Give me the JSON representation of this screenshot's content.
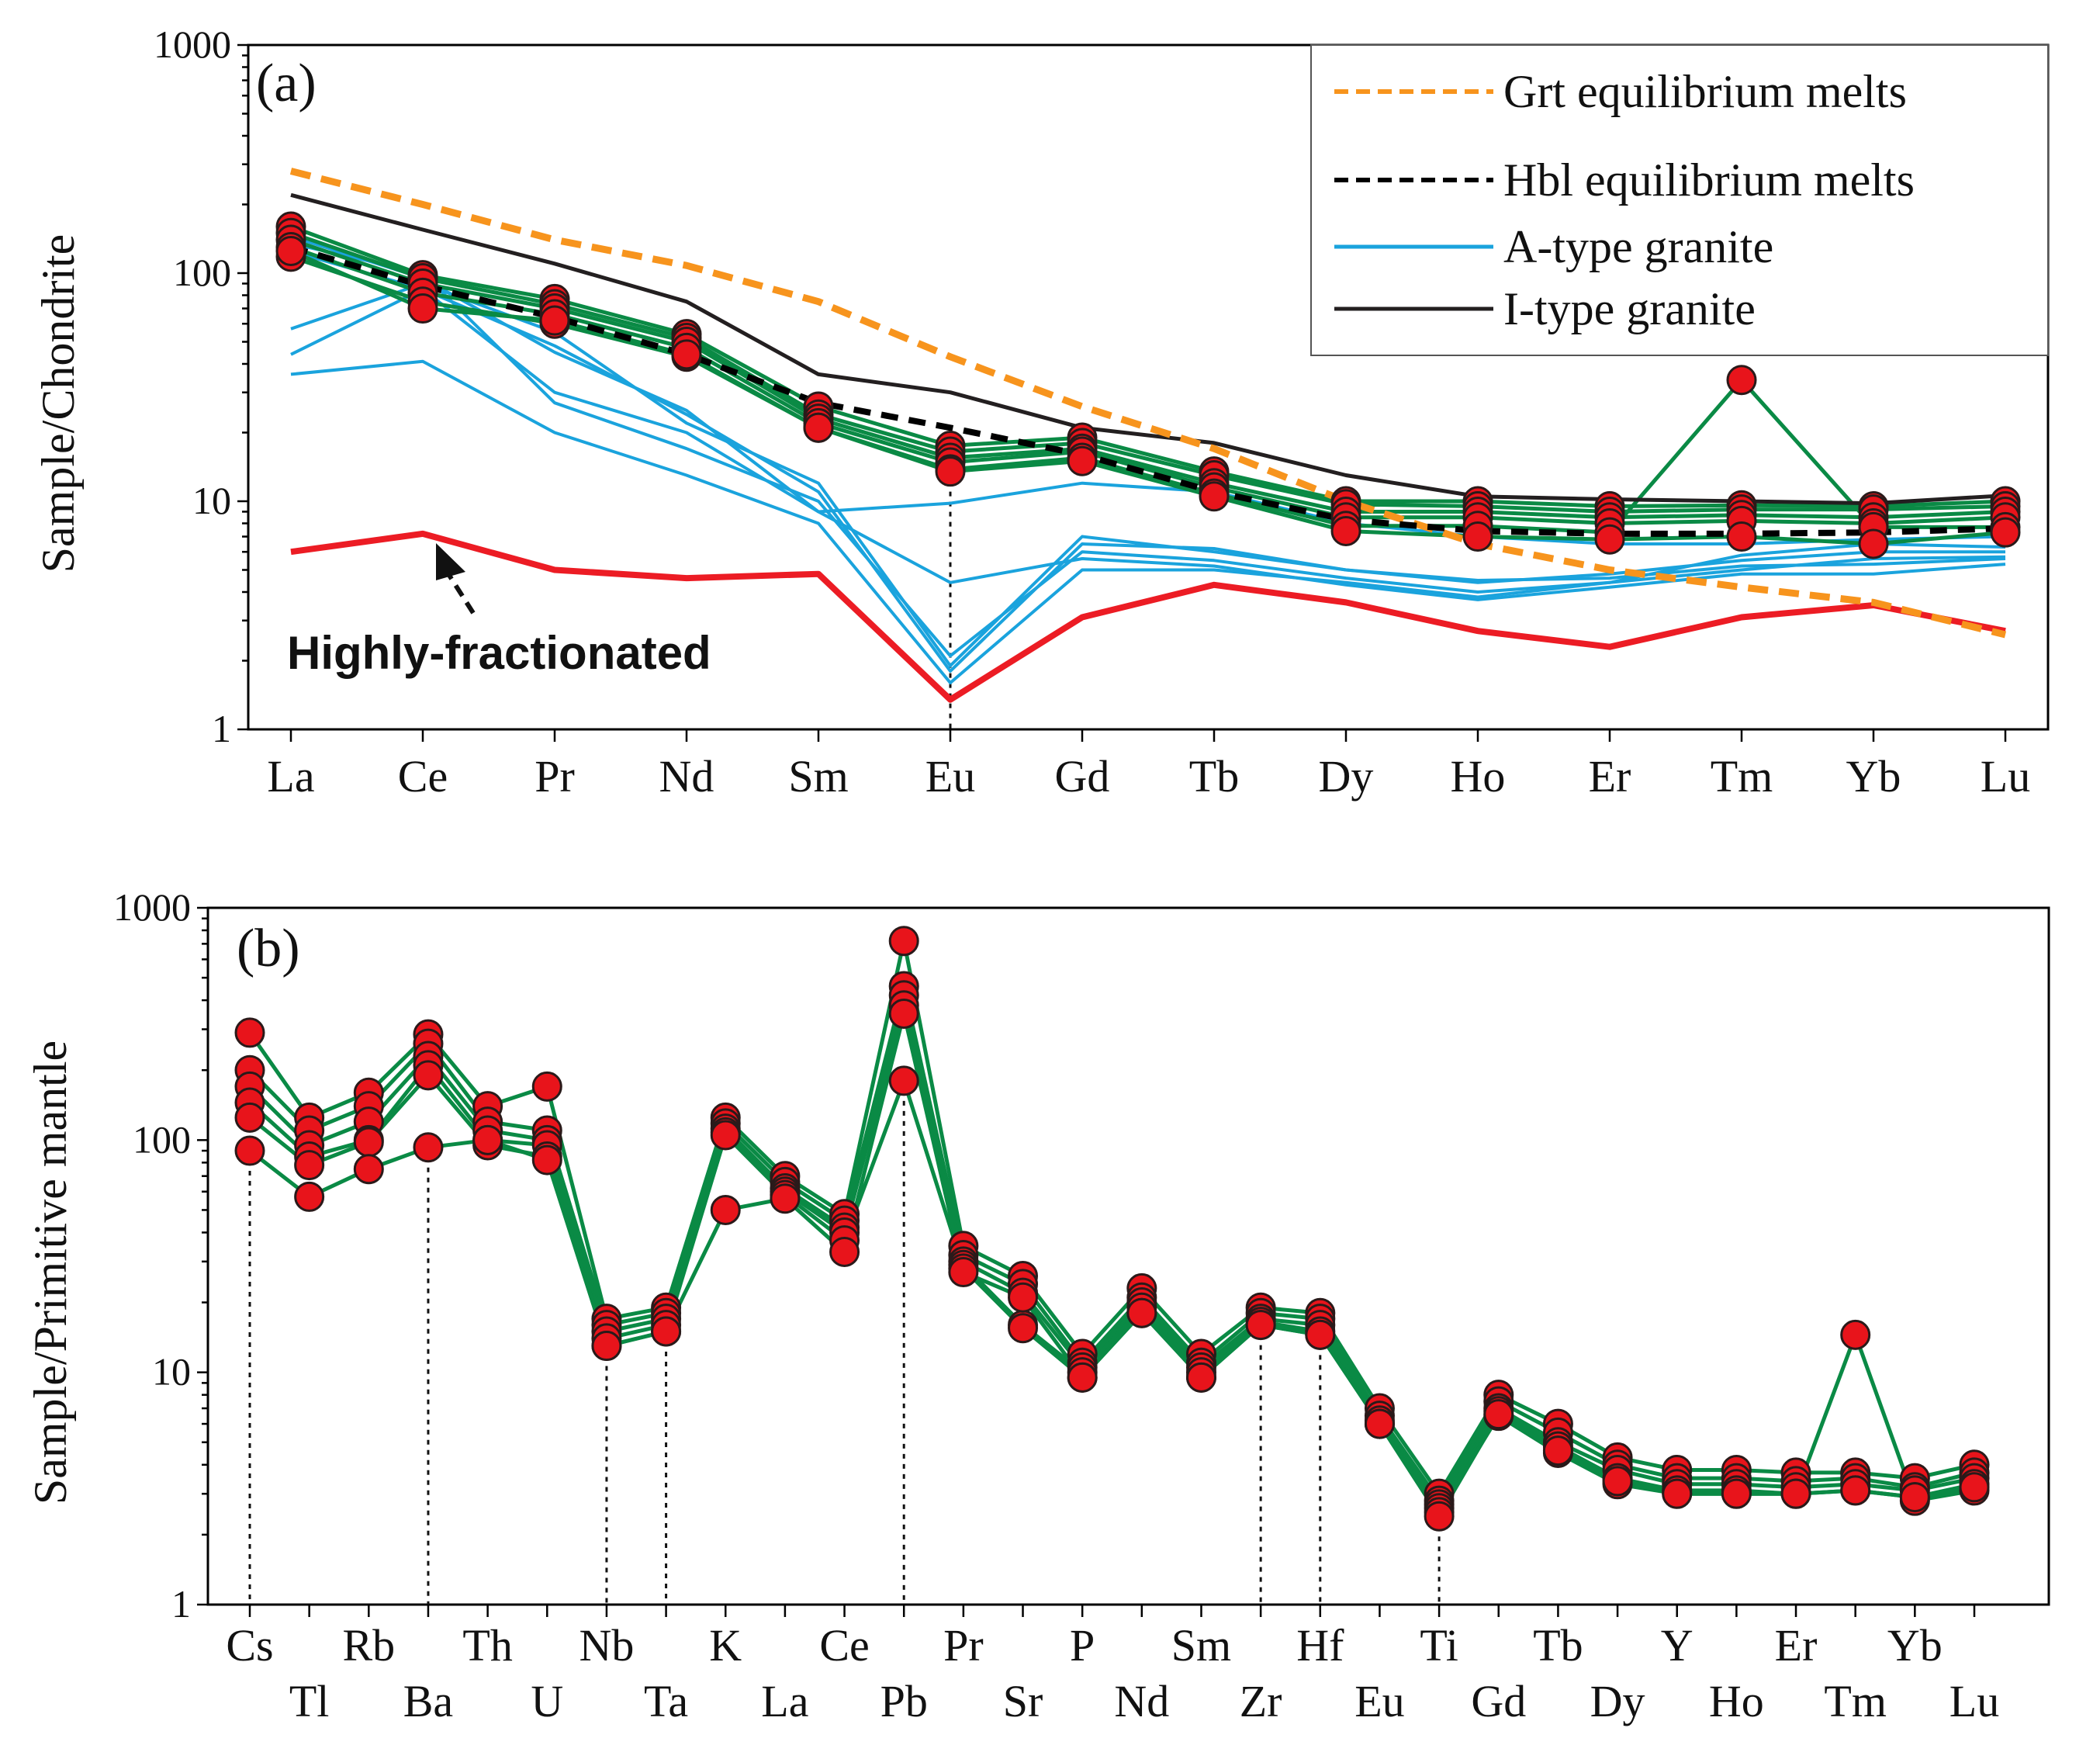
{
  "chart_data": [
    {
      "type": "line",
      "id": "a",
      "panel_label": "(a)",
      "ylabel": "Sample/Chondrite",
      "yscale": "log",
      "ylim": [
        1,
        1000
      ],
      "yticks": [
        1,
        10,
        100,
        1000
      ],
      "categories": [
        "La",
        "Ce",
        "Pr",
        "Nd",
        "Sm",
        "Eu",
        "Gd",
        "Tb",
        "Dy",
        "Ho",
        "Er",
        "Tm",
        "Yb",
        "Lu"
      ],
      "colors": {
        "grt": "#f7941d",
        "hbl": "#000000",
        "atype": "#1aa3dd",
        "itype": "#231f20",
        "sample": "#0a8a45",
        "fractionated": "#ec1c24",
        "marker": "#e8141b"
      },
      "legend": {
        "position": "top-right",
        "entries": [
          {
            "key": "grt",
            "label": "Grt equilibrium melts",
            "style": "dashed"
          },
          {
            "key": "hbl",
            "label": "Hbl equilibrium melts",
            "style": "dashed"
          },
          {
            "key": "atype",
            "label": "A-type granite",
            "style": "solid"
          },
          {
            "key": "itype",
            "label": "I-type granite",
            "style": "solid"
          }
        ]
      },
      "annotation": "Highly-fractionated",
      "guide_categories": [
        "Eu"
      ],
      "series": [
        {
          "name": "A-type granite",
          "key": "atype",
          "values": [
            57,
            90,
            55,
            22,
            12,
            1.9,
            7,
            6,
            5,
            4.5,
            4.6,
            5.2,
            5.3,
            5.6
          ]
        },
        {
          "name": "A-type granite",
          "key": "atype",
          "values": [
            44,
            85,
            48,
            24,
            11,
            1.8,
            6.5,
            6.2,
            5,
            4.4,
            4.8,
            5.5,
            6,
            6
          ]
        },
        {
          "name": "A-type granite",
          "key": "atype",
          "values": [
            36,
            41,
            20,
            13,
            8,
            1.6,
            5,
            5,
            4.4,
            3.8,
            4.4,
            5.8,
            6.5,
            6.3
          ]
        },
        {
          "name": "A-type granite",
          "key": "atype",
          "values": [
            135,
            100,
            27,
            17,
            10,
            2.1,
            6,
            5.5,
            4.6,
            4,
            4.4,
            5,
            5.6,
            5.7
          ]
        },
        {
          "name": "A-type granite",
          "key": "atype",
          "values": [
            125,
            85,
            30,
            20,
            9,
            4.4,
            5.6,
            5.2,
            4.3,
            3.7,
            4.2,
            4.8,
            4.8,
            5.3
          ]
        },
        {
          "name": "A-type granite",
          "key": "atype",
          "values": [
            145,
            95,
            45,
            25,
            9,
            9.8,
            12,
            11,
            8,
            7,
            6.5,
            6.5,
            6.8,
            7
          ]
        },
        {
          "name": "Sample",
          "key": "sample",
          "values": [
            160,
            98,
            77,
            54,
            26,
            17.5,
            19,
            13.5,
            10,
            10,
            9.5,
            9.6,
            9.5,
            10
          ],
          "markers": true
        },
        {
          "name": "Sample",
          "key": "sample",
          "values": [
            150,
            95,
            73,
            52,
            24,
            16.5,
            18,
            13,
            9.7,
            9.5,
            9,
            9.2,
            9.2,
            9.5
          ],
          "markers": true
        },
        {
          "name": "Sample",
          "key": "sample",
          "values": [
            140,
            90,
            70,
            50,
            23,
            15.5,
            17,
            12,
            9,
            9,
            8.5,
            8.7,
            8.5,
            9
          ],
          "markers": true
        },
        {
          "name": "Sample",
          "key": "sample",
          "values": [
            130,
            82,
            66,
            47,
            22,
            14.8,
            16.5,
            11.5,
            8.5,
            8.5,
            8,
            8.2,
            8,
            8.5
          ],
          "markers": true
        },
        {
          "name": "Sample",
          "key": "sample",
          "values": [
            118,
            75,
            60,
            43,
            21,
            13.8,
            15.5,
            10.8,
            7.8,
            7.8,
            7.3,
            34,
            7.7,
            7.7
          ],
          "markers": true
        },
        {
          "name": "Sample",
          "key": "sample",
          "values": [
            125,
            70,
            62,
            44,
            21,
            13.5,
            15,
            10.5,
            7.4,
            7,
            6.8,
            7,
            6.5,
            7.3
          ],
          "markers": true
        },
        {
          "name": "Highly-fractionated",
          "key": "fractionated",
          "values": [
            6,
            7.2,
            5,
            4.6,
            4.8,
            1.35,
            3.1,
            4.3,
            3.6,
            2.7,
            2.3,
            3.1,
            3.5,
            2.7
          ]
        },
        {
          "name": "I-type granite",
          "key": "itype",
          "values": [
            220,
            155,
            110,
            75,
            36,
            30,
            21,
            18,
            13,
            10.5,
            10.2,
            10,
            9.8,
            10.6
          ]
        },
        {
          "name": "Grt equilibrium melts",
          "key": "grt",
          "values": [
            280,
            200,
            140,
            108,
            75,
            43,
            26,
            17,
            10,
            6.5,
            5,
            4.2,
            3.6,
            2.6
          ]
        },
        {
          "name": "Hbl equilibrium melts",
          "key": "hbl",
          "values": [
            130,
            88,
            64,
            44,
            27,
            21,
            16,
            11,
            8.3,
            7.4,
            7.2,
            7.2,
            7.3,
            7.6
          ]
        }
      ]
    },
    {
      "type": "line",
      "id": "b",
      "panel_label": "(b)",
      "ylabel": "Sample/Primitive mantle",
      "yscale": "log",
      "ylim": [
        1,
        1000
      ],
      "yticks": [
        1,
        10,
        100,
        1000
      ],
      "categories": [
        "Cs",
        "Tl",
        "Rb",
        "Ba",
        "Th",
        "U",
        "Nb",
        "Ta",
        "K",
        "La",
        "Ce",
        "Pb",
        "Pr",
        "Sr",
        "P",
        "Nd",
        "Sm",
        "Zr",
        "Hf",
        "Eu",
        "Ti",
        "Gd",
        "Tb",
        "Dy",
        "Y",
        "Ho",
        "Er",
        "Tm",
        "Yb",
        "Lu"
      ],
      "colors": {
        "sample": "#0a8a45",
        "marker": "#e8141b"
      },
      "guide_categories": [
        "Cs",
        "Ba",
        "Nb",
        "Ta",
        "Pb",
        "Zr",
        "Hf",
        "Ti"
      ],
      "series": [
        {
          "name": "Sample",
          "values": [
            290,
            125,
            160,
            285,
            140,
            170,
            17,
            19,
            125,
            70,
            48,
            720,
            35,
            26,
            12,
            23,
            12,
            19,
            18,
            7,
            3,
            8,
            6,
            4.3,
            3.8,
            3.8,
            3.7,
            3.7,
            3.5,
            4
          ]
        },
        {
          "name": "Sample",
          "values": [
            200,
            110,
            140,
            260,
            120,
            110,
            16,
            18,
            118,
            66,
            45,
            460,
            32,
            24,
            11,
            21,
            11,
            18,
            17,
            6.5,
            2.8,
            7.5,
            5.5,
            4,
            3.5,
            3.5,
            3.4,
            3.5,
            3.2,
            3.7
          ]
        },
        {
          "name": "Sample",
          "values": [
            170,
            95,
            120,
            230,
            110,
            100,
            15,
            17,
            112,
            62,
            42,
            420,
            30,
            22,
            10.5,
            20,
            10.5,
            17,
            16,
            6.2,
            2.7,
            7,
            5,
            3.8,
            3.3,
            3.3,
            3.2,
            3.3,
            3.1,
            3.5
          ]
        },
        {
          "name": "Sample",
          "values": [
            145,
            85,
            100,
            210,
            100,
            95,
            14,
            16,
            108,
            60,
            40,
            380,
            29,
            16,
            10,
            19,
            10,
            16.5,
            15,
            6,
            2.6,
            6.8,
            4.8,
            3.5,
            3.1,
            3.1,
            3,
            3.1,
            2.9,
            3.3
          ]
        },
        {
          "name": "Sample",
          "values": [
            125,
            78,
            98,
            190,
            95,
            85,
            13,
            15,
            105,
            58,
            37,
            180,
            28,
            15.5,
            9.5,
            18,
            9.5,
            16,
            14.5,
            6,
            2.5,
            6.5,
            4.5,
            3.3,
            3,
            3,
            3,
            14.5,
            2.8,
            3.1
          ]
        },
        {
          "name": "Sample",
          "values": [
            90,
            57,
            75,
            93,
            100,
            82,
            13,
            15,
            50,
            56,
            33,
            350,
            27,
            21,
            9.5,
            18,
            9.5,
            16,
            14.5,
            6,
            2.4,
            6.6,
            4.6,
            3.4,
            3,
            3,
            3,
            3.1,
            2.9,
            3.2
          ]
        }
      ]
    }
  ]
}
